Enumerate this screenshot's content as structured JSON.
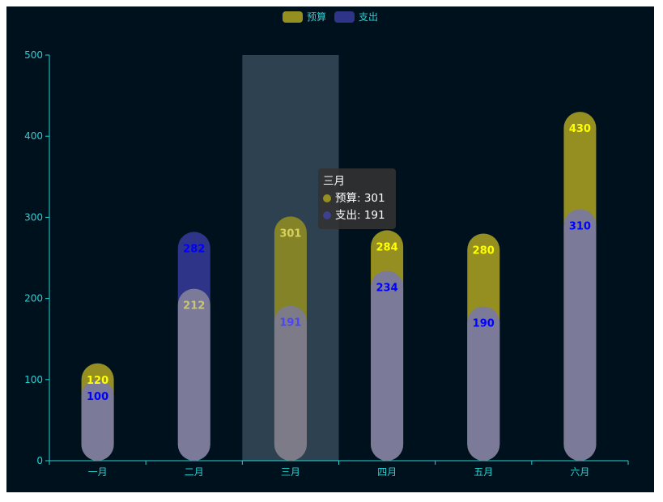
{
  "chart_data": {
    "type": "bar",
    "categories": [
      "一月",
      "二月",
      "三月",
      "四月",
      "五月",
      "六月"
    ],
    "series": [
      {
        "name": "预算",
        "values": [
          120,
          212,
          301,
          284,
          280,
          430
        ],
        "color": "#958f21",
        "label_color": "#ffff00"
      },
      {
        "name": "支出",
        "values": [
          100,
          282,
          191,
          234,
          190,
          310
        ],
        "color": "#2e3589",
        "label_color": "#0000ff"
      }
    ],
    "ylim": [
      0,
      500
    ],
    "yticks": [
      0,
      100,
      200,
      300,
      400,
      500
    ],
    "overlay_color": "#7b7a98",
    "highlighted_category": "三月",
    "background": "#00111e",
    "axis_color": "#22d3d3"
  },
  "legend": [
    {
      "label": "预算",
      "color": "#958f21"
    },
    {
      "label": "支出",
      "color": "#2e3589"
    }
  ],
  "tooltip": {
    "title": "三月",
    "rows": [
      {
        "label": "预算: 301",
        "color": "#958f21"
      },
      {
        "label": "支出: 191",
        "color": "#3d3f8f"
      }
    ]
  }
}
